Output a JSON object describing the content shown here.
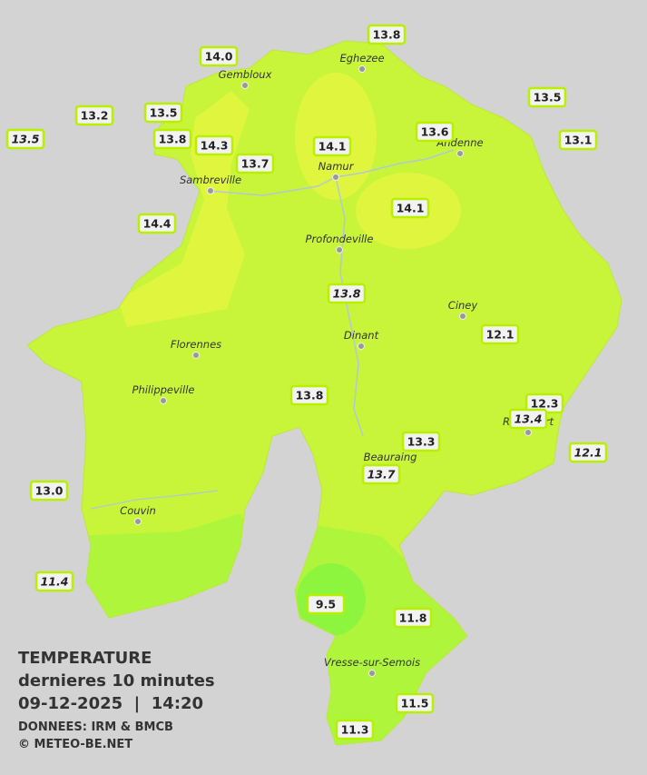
{
  "map": {
    "towns": [
      "Eghezee",
      "Gembloux",
      "Andenne",
      "Namur",
      "Sambreville",
      "Profondeville",
      "Ciney",
      "Dinant",
      "Florennes",
      "Philippeville",
      "Rochefort",
      "Beauraing",
      "Couvin",
      "Vresse-sur-Semois"
    ],
    "stations": [
      {
        "label": "14.0",
        "italic": false
      },
      {
        "label": "13.8",
        "italic": false
      },
      {
        "label": "13.5",
        "italic": false
      },
      {
        "label": "13.2",
        "italic": false
      },
      {
        "label": "13.5",
        "italic": false
      },
      {
        "label": "13.5",
        "italic": true
      },
      {
        "label": "13.8",
        "italic": false
      },
      {
        "label": "14.3",
        "italic": false
      },
      {
        "label": "14.1",
        "italic": false
      },
      {
        "label": "13.6",
        "italic": false
      },
      {
        "label": "13.1",
        "italic": false
      },
      {
        "label": "13.7",
        "italic": false
      },
      {
        "label": "14.1",
        "italic": false
      },
      {
        "label": "14.4",
        "italic": false
      },
      {
        "label": "13.8",
        "italic": true
      },
      {
        "label": "12.1",
        "italic": false
      },
      {
        "label": "13.8",
        "italic": false
      },
      {
        "label": "12.3",
        "italic": false
      },
      {
        "label": "13.4",
        "italic": true
      },
      {
        "label": "12.1",
        "italic": true
      },
      {
        "label": "13.3",
        "italic": false
      },
      {
        "label": "13.7",
        "italic": true
      },
      {
        "label": "13.0",
        "italic": false
      },
      {
        "label": "11.4",
        "italic": true
      },
      {
        "label": "9.5",
        "italic": false
      },
      {
        "label": "11.8",
        "italic": false
      },
      {
        "label": "11.5",
        "italic": false
      },
      {
        "label": "11.3",
        "italic": false
      }
    ],
    "legend": {
      "title": "TEMPERATURE",
      "subtitle": "dernieres 10 minutes",
      "datetime": "09-12-2025  |  14:20",
      "source": "DONNEES: IRM & BMCB",
      "credit": "© METEO-BE.NET"
    }
  }
}
